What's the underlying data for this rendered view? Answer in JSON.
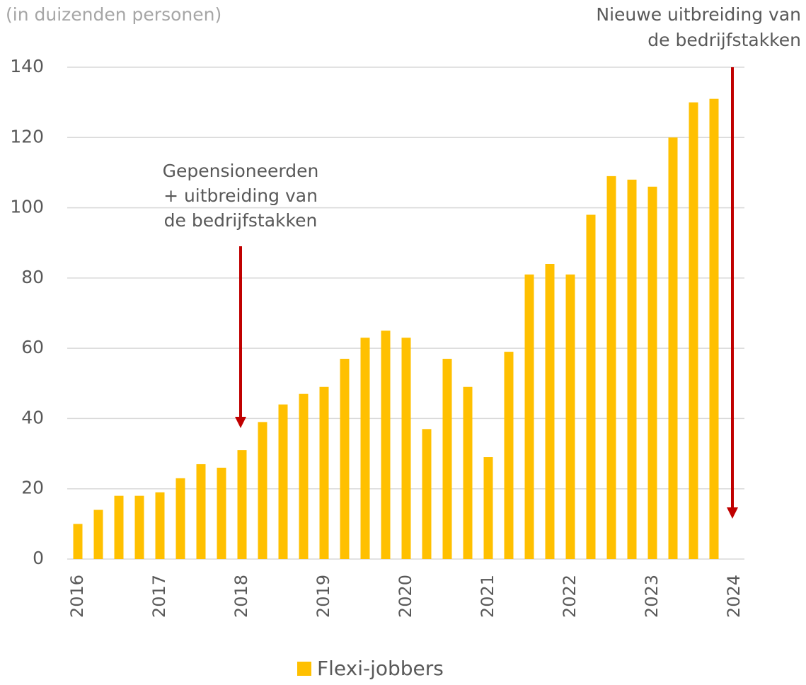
{
  "chart_data": {
    "type": "bar",
    "subtitle": "(in duizenden personen)",
    "categories": [
      "2016",
      null,
      null,
      null,
      "2017",
      null,
      null,
      null,
      "2018",
      null,
      null,
      null,
      "2019",
      null,
      null,
      null,
      "2020",
      null,
      null,
      null,
      "2021",
      null,
      null,
      null,
      "2022",
      null,
      null,
      null,
      "2023",
      null,
      null,
      null,
      "2024"
    ],
    "series": [
      {
        "name": "Flexi-jobbers",
        "color": "#ffc000",
        "values": [
          10,
          14,
          18,
          18,
          19,
          23,
          27,
          26,
          31,
          39,
          44,
          47,
          49,
          57,
          63,
          65,
          63,
          37,
          57,
          49,
          29,
          59,
          81,
          84,
          81,
          98,
          109,
          108,
          106,
          120,
          130,
          131,
          null
        ]
      }
    ],
    "ylim": [
      0,
      140
    ],
    "yticks": [
      0,
      20,
      40,
      60,
      80,
      100,
      120,
      140
    ],
    "grid": true,
    "legend": "bottom",
    "annotations": [
      {
        "text": [
          "Gepensioneerden",
          "+ uitbreiding van",
          "de bedrijfstakken"
        ],
        "color": "#c00000"
      },
      {
        "text": [
          "Nieuwe uitbreiding van",
          "de bedrijfstakken"
        ],
        "color": "#c00000"
      }
    ]
  }
}
